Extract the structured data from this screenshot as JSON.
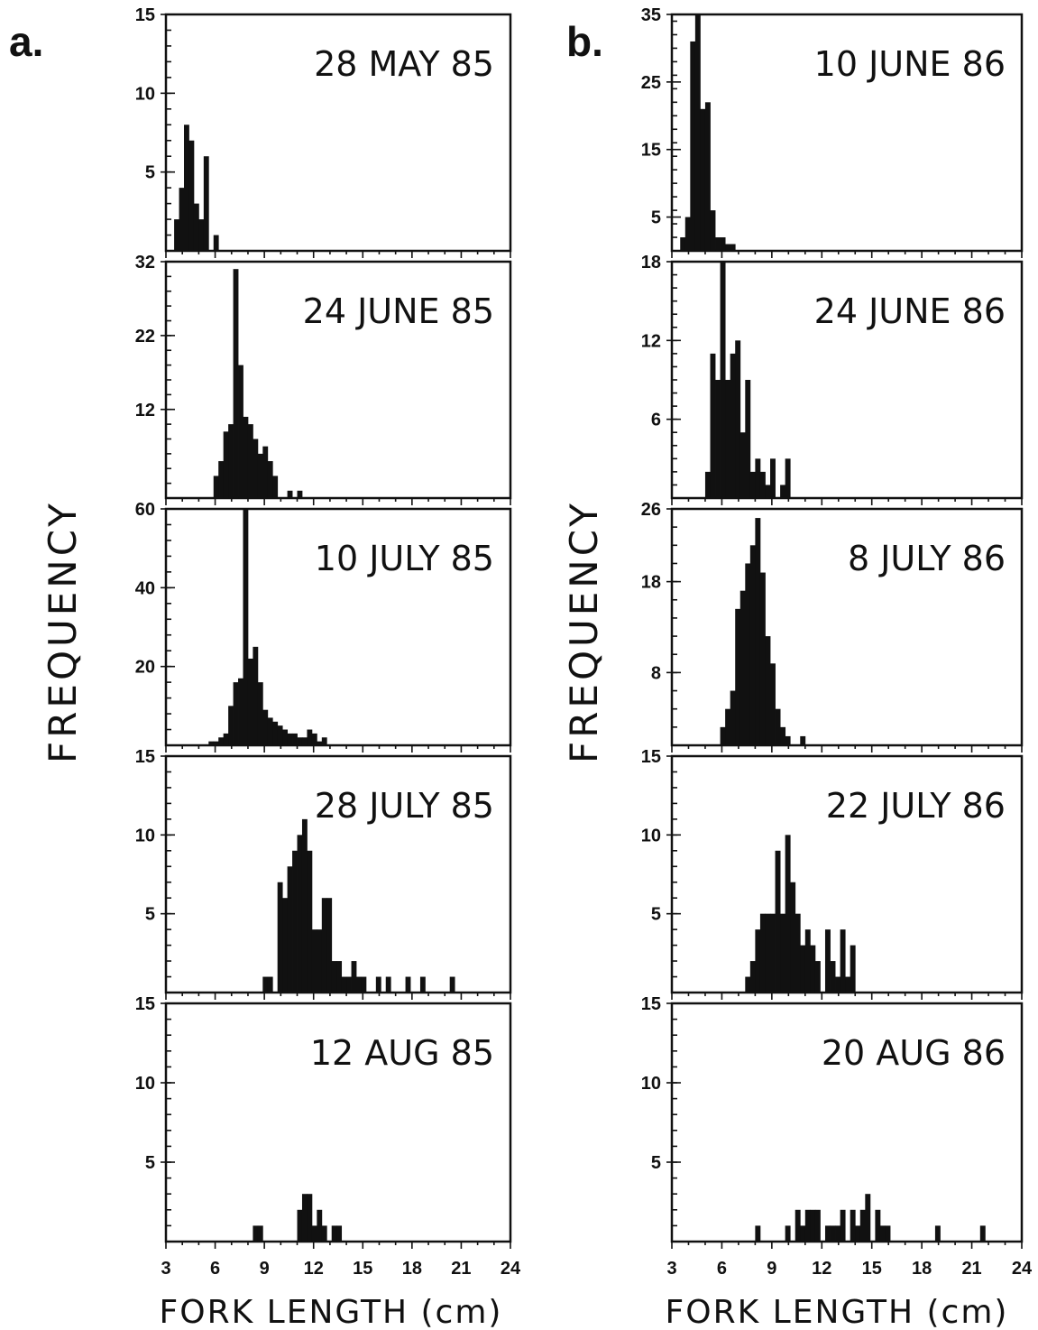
{
  "figure": {
    "panel_a_letter": "a.",
    "panel_b_letter": "b.",
    "ylabel_a": "FREQUENCY",
    "ylabel_b": "FREQUENCY",
    "xlabel_a": "FORK LENGTH (cm)",
    "xlabel_b": "FORK LENGTH (cm)",
    "ink_color": "#111111",
    "background": "#ffffff"
  },
  "chart_data": [
    {
      "id": "a1",
      "type": "bar",
      "title": "28 MAY 85",
      "xlim": [
        3,
        24
      ],
      "ylim": [
        0,
        15
      ],
      "yticks": [
        5,
        10,
        15
      ],
      "x": [
        3.5,
        3.8,
        4.1,
        4.4,
        4.7,
        5.0,
        5.3,
        5.6,
        5.9,
        6.2
      ],
      "values": [
        2,
        4,
        8,
        7,
        3,
        2,
        6,
        0,
        1,
        0
      ]
    },
    {
      "id": "a2",
      "type": "bar",
      "title": "24 JUNE 85",
      "xlim": [
        3,
        24
      ],
      "ylim": [
        0,
        32
      ],
      "yticks": [
        12,
        22,
        32
      ],
      "x": [
        5.9,
        6.2,
        6.5,
        6.8,
        7.1,
        7.4,
        7.7,
        8.0,
        8.3,
        8.6,
        8.9,
        9.2,
        9.5,
        9.8,
        10.1,
        10.4,
        10.7,
        11.0
      ],
      "values": [
        3,
        5,
        9,
        10,
        31,
        18,
        11,
        10,
        8,
        6,
        7,
        5,
        3,
        0,
        0,
        1,
        0,
        1
      ]
    },
    {
      "id": "a3",
      "type": "bar",
      "title": "10 JULY 85",
      "xlim": [
        3,
        24
      ],
      "ylim": [
        0,
        60
      ],
      "yticks": [
        20,
        40,
        60
      ],
      "x": [
        5.6,
        5.9,
        6.2,
        6.5,
        6.8,
        7.1,
        7.4,
        7.7,
        8.0,
        8.3,
        8.6,
        8.9,
        9.2,
        9.5,
        9.8,
        10.1,
        10.4,
        10.7,
        11.0,
        11.3,
        11.6,
        11.9,
        12.2,
        12.5
      ],
      "values": [
        1,
        1,
        2,
        3,
        10,
        16,
        17,
        60,
        22,
        25,
        16,
        9,
        7,
        6,
        5,
        4,
        3,
        3,
        2,
        2,
        4,
        3,
        1,
        2
      ]
    },
    {
      "id": "a4",
      "type": "bar",
      "title": "28 JULY 85",
      "xlim": [
        3,
        24
      ],
      "ylim": [
        0,
        15
      ],
      "yticks": [
        5,
        10,
        15
      ],
      "x": [
        8.9,
        9.2,
        9.5,
        9.8,
        10.1,
        10.4,
        10.7,
        11.0,
        11.3,
        11.6,
        11.9,
        12.2,
        12.5,
        12.8,
        13.1,
        13.4,
        13.7,
        14.0,
        14.3,
        14.6,
        14.9,
        15.2,
        15.5,
        15.8,
        16.1,
        16.4,
        16.7,
        17.0,
        17.3,
        17.6,
        17.9,
        18.2,
        18.5,
        18.8,
        19.1,
        19.4,
        19.7,
        20.0,
        20.3,
        20.6
      ],
      "values": [
        1,
        1,
        0,
        7,
        6,
        8,
        9,
        10,
        11,
        9,
        4,
        4,
        6,
        6,
        2,
        2,
        1,
        1,
        2,
        1,
        1,
        0,
        0,
        1,
        0,
        1,
        0,
        0,
        0,
        1,
        0,
        0,
        1,
        0,
        0,
        0,
        0,
        0,
        1,
        0
      ]
    },
    {
      "id": "a5",
      "type": "bar",
      "title": "12 AUG 85",
      "xlim": [
        3,
        24
      ],
      "ylim": [
        0,
        15
      ],
      "yticks": [
        5,
        10,
        15
      ],
      "x": [
        8.3,
        8.6,
        8.9,
        11.0,
        11.3,
        11.6,
        11.9,
        12.2,
        12.5,
        12.8,
        13.1,
        13.4,
        13.7
      ],
      "values": [
        1,
        1,
        0,
        2,
        3,
        3,
        1,
        2,
        1,
        0,
        1,
        1,
        0
      ]
    },
    {
      "id": "b1",
      "type": "bar",
      "title": "10 JUNE 86",
      "xlim": [
        3,
        24
      ],
      "ylim": [
        0,
        35
      ],
      "yticks": [
        5,
        15,
        25,
        35
      ],
      "x": [
        3.5,
        3.8,
        4.1,
        4.4,
        4.7,
        5.0,
        5.3,
        5.6,
        5.9,
        6.2,
        6.5
      ],
      "values": [
        2,
        5,
        31,
        35,
        21,
        22,
        6,
        2,
        2,
        1,
        1
      ]
    },
    {
      "id": "b2",
      "type": "bar",
      "title": "24 JUNE 86",
      "xlim": [
        3,
        24
      ],
      "ylim": [
        0,
        18
      ],
      "yticks": [
        6,
        12,
        18
      ],
      "x": [
        5.0,
        5.3,
        5.6,
        5.9,
        6.2,
        6.5,
        6.8,
        7.1,
        7.4,
        7.7,
        8.0,
        8.3,
        8.6,
        8.9,
        9.2,
        9.5,
        9.8
      ],
      "values": [
        2,
        11,
        9,
        18,
        9,
        11,
        12,
        5,
        9,
        2,
        3,
        2,
        1,
        3,
        0,
        1,
        3
      ]
    },
    {
      "id": "b3",
      "type": "bar",
      "title": "8 JULY 86",
      "xlim": [
        3,
        24
      ],
      "ylim": [
        0,
        26
      ],
      "yticks": [
        8,
        18,
        26
      ],
      "x": [
        5.9,
        6.2,
        6.5,
        6.8,
        7.1,
        7.4,
        7.7,
        8.0,
        8.3,
        8.6,
        8.9,
        9.2,
        9.5,
        9.8,
        10.1,
        10.4,
        10.7
      ],
      "values": [
        2,
        4,
        6,
        15,
        17,
        20,
        22,
        25,
        19,
        12,
        9,
        4,
        2,
        1,
        0,
        0,
        1
      ]
    },
    {
      "id": "b4",
      "type": "bar",
      "title": "22 JULY 86",
      "xlim": [
        3,
        24
      ],
      "ylim": [
        0,
        15
      ],
      "yticks": [
        5,
        10,
        15
      ],
      "x": [
        7.4,
        7.7,
        8.0,
        8.3,
        8.6,
        8.9,
        9.2,
        9.5,
        9.8,
        10.1,
        10.4,
        10.7,
        11.0,
        11.3,
        11.6,
        11.9,
        12.2,
        12.5,
        12.8,
        13.1,
        13.4,
        13.7
      ],
      "values": [
        1,
        2,
        4,
        5,
        5,
        5,
        9,
        5,
        10,
        7,
        5,
        3,
        4,
        3,
        2,
        0,
        4,
        2,
        1,
        4,
        1,
        3
      ]
    },
    {
      "id": "b5",
      "type": "bar",
      "title": "20 AUG 86",
      "xlim": [
        3,
        24
      ],
      "ylim": [
        0,
        15
      ],
      "yticks": [
        5,
        10,
        15
      ],
      "x": [
        8.0,
        9.8,
        10.4,
        10.7,
        11.0,
        11.3,
        11.6,
        12.2,
        12.5,
        12.8,
        13.1,
        13.7,
        14.0,
        14.3,
        14.6,
        15.2,
        15.5,
        15.8,
        18.8,
        21.5
      ],
      "values": [
        1,
        1,
        2,
        1,
        2,
        2,
        2,
        1,
        1,
        1,
        2,
        2,
        1,
        2,
        3,
        2,
        1,
        1,
        1,
        1
      ]
    }
  ],
  "xtick_labels_a": [
    "3",
    "6",
    "9",
    "12",
    "15",
    "18",
    "21",
    "24"
  ],
  "xtick_labels_b": [
    "3",
    "6",
    "9",
    "12",
    "15",
    "18",
    "21",
    "24"
  ]
}
